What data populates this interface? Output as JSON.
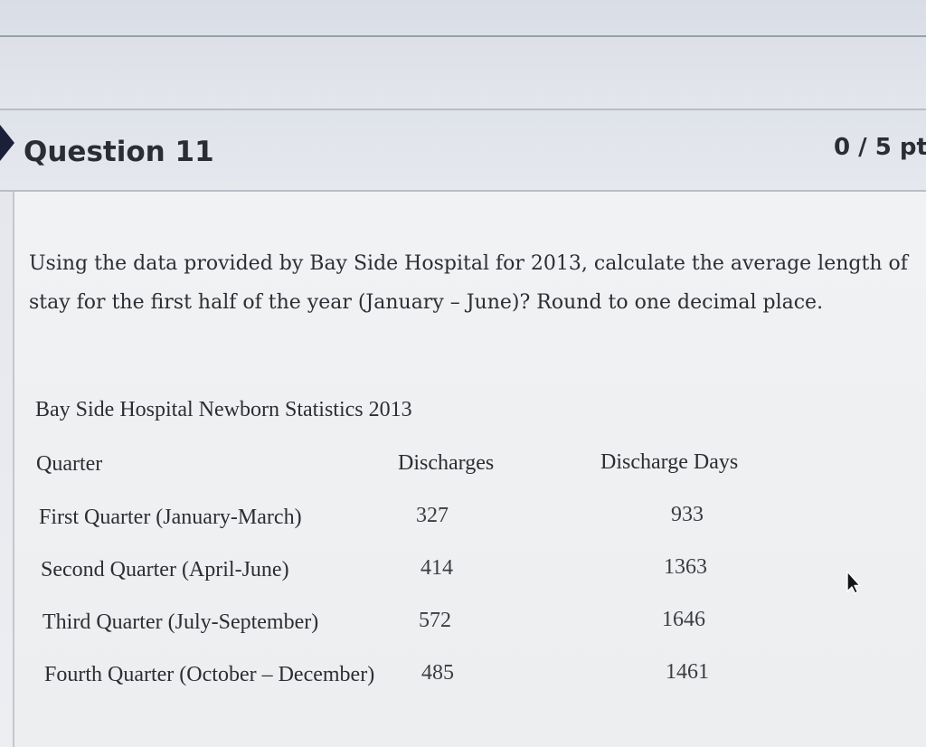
{
  "question": {
    "title": "Question 11",
    "points": "0 / 5 pt",
    "text": "Using the data provided by Bay Side Hospital for 2013, calculate the average length of stay for the first half of the year (January – June)? Round to one decimal place."
  },
  "table": {
    "caption": "Bay Side Hospital Newborn Statistics 2013",
    "headers": {
      "quarter": "Quarter",
      "discharges": "Discharges",
      "discharge_days": "Discharge Days"
    },
    "rows": [
      {
        "quarter": "First Quarter (January-March)",
        "discharges": "327",
        "discharge_days": "933"
      },
      {
        "quarter": "Second Quarter (April-June)",
        "discharges": "414",
        "discharge_days": "1363"
      },
      {
        "quarter": "Third Quarter (July-September)",
        "discharges": "572",
        "discharge_days": "1646"
      },
      {
        "quarter": "Fourth Quarter (October – December)",
        "discharges": "485",
        "discharge_days": "1461"
      }
    ]
  },
  "icons": {
    "header_marker": "triangle-marker-icon",
    "cursor": "mouse-cursor-icon"
  },
  "colors": {
    "header_bg": "#e3e6ec",
    "text": "#2b2e33",
    "marker": "#1c1f3a"
  }
}
